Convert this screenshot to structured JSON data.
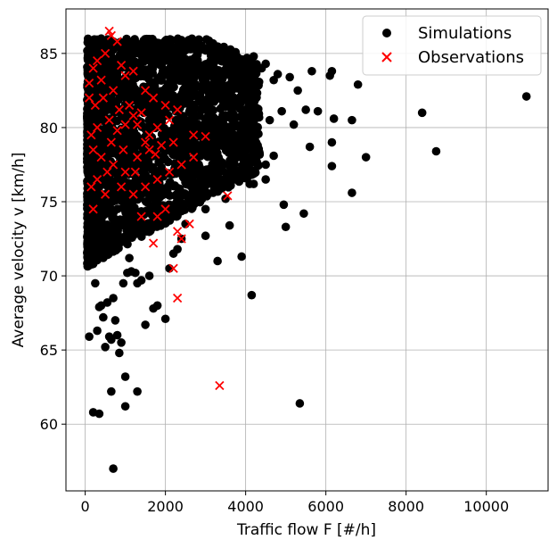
{
  "chart_data": {
    "type": "scatter",
    "xlabel": "Traffic flow F [#/h]",
    "ylabel": "Average velocity v [km/h]",
    "xlim": [
      -480,
      11540
    ],
    "ylim": [
      55.5,
      88.0
    ],
    "xticks": [
      0,
      2000,
      4000,
      6000,
      8000,
      10000
    ],
    "yticks": [
      60,
      65,
      70,
      75,
      80,
      85
    ],
    "grid": true,
    "legend_position": "top-right",
    "series": [
      {
        "name": "Simulations",
        "marker": "circle",
        "color": "#000000",
        "points": [
          [
            11000,
            82.1
          ],
          [
            8750,
            78.4
          ],
          [
            8400,
            81.0
          ],
          [
            7000,
            78.0
          ],
          [
            6800,
            82.9
          ],
          [
            6650,
            80.5
          ],
          [
            6650,
            75.6
          ],
          [
            6150,
            77.4
          ],
          [
            6150,
            79.0
          ],
          [
            6100,
            83.5
          ],
          [
            6150,
            83.8
          ],
          [
            5650,
            83.8
          ],
          [
            5600,
            78.7
          ],
          [
            5450,
            74.2
          ],
          [
            5350,
            61.4
          ],
          [
            5300,
            82.5
          ],
          [
            5000,
            73.3
          ],
          [
            4950,
            74.8
          ],
          [
            4700,
            83.2
          ],
          [
            4500,
            77.5
          ],
          [
            4300,
            82.8
          ],
          [
            4150,
            68.7
          ],
          [
            4100,
            76.2
          ],
          [
            3900,
            71.3
          ],
          [
            3800,
            78.0
          ],
          [
            3600,
            73.4
          ],
          [
            3500,
            75.2
          ],
          [
            3300,
            71.0
          ],
          [
            3000,
            72.7
          ],
          [
            2900,
            76.0
          ],
          [
            2700,
            74.8
          ],
          [
            2500,
            73.5
          ],
          [
            2400,
            72.5
          ],
          [
            2300,
            71.8
          ],
          [
            2100,
            70.5
          ],
          [
            2000,
            67.1
          ],
          [
            1800,
            68.0
          ],
          [
            1700,
            67.8
          ],
          [
            1600,
            70.0
          ],
          [
            1500,
            66.7
          ],
          [
            1400,
            69.7
          ],
          [
            1300,
            69.5
          ],
          [
            1250,
            70.2
          ],
          [
            1300,
            62.2
          ],
          [
            1150,
            70.3
          ],
          [
            1050,
            70.2
          ],
          [
            950,
            69.5
          ],
          [
            900,
            65.5
          ],
          [
            850,
            64.8
          ],
          [
            800,
            66.0
          ],
          [
            750,
            67.0
          ],
          [
            700,
            68.5
          ],
          [
            650,
            65.7
          ],
          [
            600,
            65.9
          ],
          [
            550,
            68.2
          ],
          [
            500,
            65.2
          ],
          [
            450,
            67.2
          ],
          [
            400,
            68.0
          ],
          [
            350,
            67.9
          ],
          [
            300,
            66.3
          ],
          [
            250,
            69.5
          ],
          [
            200,
            70.8
          ],
          [
            100,
            65.9
          ],
          [
            200,
            60.8
          ],
          [
            350,
            60.7
          ],
          [
            650,
            62.2
          ],
          [
            1000,
            61.2
          ],
          [
            1000,
            63.2
          ],
          [
            700,
            57.0
          ],
          [
            150,
            71.0
          ],
          [
            2200,
            71.5
          ],
          [
            1100,
            71.2
          ],
          [
            2400,
            85.9
          ],
          [
            2000,
            85.3
          ],
          [
            1150,
            85.7
          ],
          [
            400,
            86.0
          ],
          [
            700,
            85.8
          ],
          [
            3000,
            85.2
          ],
          [
            3500,
            84.8
          ],
          [
            3900,
            84.6
          ],
          [
            4200,
            84.8
          ],
          [
            4500,
            84.3
          ],
          [
            4400,
            84.0
          ],
          [
            4800,
            83.6
          ],
          [
            5100,
            83.4
          ],
          [
            3700,
            84.0
          ],
          [
            2800,
            84.9
          ],
          [
            4600,
            80.5
          ],
          [
            4300,
            78.8
          ],
          [
            4900,
            81.1
          ],
          [
            5200,
            80.2
          ],
          [
            5500,
            81.2
          ],
          [
            5800,
            81.1
          ],
          [
            6200,
            80.6
          ],
          [
            4700,
            78.1
          ],
          [
            4500,
            76.5
          ],
          [
            4200,
            76.2
          ],
          [
            3700,
            77.0
          ],
          [
            3200,
            77.5
          ],
          [
            3000,
            74.5
          ]
        ]
      },
      {
        "name": "Observations",
        "marker": "x",
        "color": "#ff0000",
        "points": [
          [
            600,
            86.5
          ],
          [
            650,
            86.2
          ],
          [
            800,
            85.8
          ],
          [
            500,
            85.0
          ],
          [
            300,
            84.5
          ],
          [
            200,
            84.0
          ],
          [
            900,
            84.2
          ],
          [
            1000,
            83.5
          ],
          [
            1200,
            83.8
          ],
          [
            400,
            83.2
          ],
          [
            100,
            83.0
          ],
          [
            700,
            82.5
          ],
          [
            1500,
            82.5
          ],
          [
            1700,
            82.0
          ],
          [
            2000,
            81.5
          ],
          [
            2300,
            81.2
          ],
          [
            2100,
            80.5
          ],
          [
            1800,
            80.0
          ],
          [
            1600,
            79.5
          ],
          [
            1400,
            81.0
          ],
          [
            1200,
            80.8
          ],
          [
            1000,
            80.2
          ],
          [
            800,
            79.8
          ],
          [
            600,
            80.5
          ],
          [
            300,
            80.0
          ],
          [
            150,
            79.5
          ],
          [
            200,
            78.5
          ],
          [
            400,
            78.0
          ],
          [
            700,
            77.5
          ],
          [
            1000,
            77.0
          ],
          [
            1300,
            78.0
          ],
          [
            1600,
            78.5
          ],
          [
            1900,
            78.8
          ],
          [
            2200,
            79.0
          ],
          [
            2700,
            79.5
          ],
          [
            3000,
            79.4
          ],
          [
            2700,
            78.0
          ],
          [
            2400,
            77.5
          ],
          [
            2100,
            77.0
          ],
          [
            1800,
            76.5
          ],
          [
            1500,
            76.0
          ],
          [
            1200,
            75.5
          ],
          [
            900,
            76.0
          ],
          [
            500,
            75.5
          ],
          [
            300,
            76.5
          ],
          [
            200,
            74.5
          ],
          [
            1400,
            74.0
          ],
          [
            1800,
            74.0
          ],
          [
            2000,
            74.5
          ],
          [
            2600,
            73.5
          ],
          [
            2300,
            73.0
          ],
          [
            2400,
            72.5
          ],
          [
            1700,
            72.2
          ],
          [
            2200,
            70.5
          ],
          [
            2300,
            68.5
          ],
          [
            3350,
            62.6
          ],
          [
            3550,
            75.4
          ],
          [
            100,
            82.0
          ],
          [
            250,
            81.5
          ],
          [
            450,
            82.0
          ],
          [
            850,
            81.2
          ],
          [
            1100,
            81.5
          ],
          [
            1300,
            80.2
          ],
          [
            1500,
            79.0
          ],
          [
            1750,
            78.2
          ],
          [
            550,
            77.0
          ],
          [
            950,
            78.5
          ],
          [
            1250,
            77.0
          ],
          [
            150,
            76.0
          ],
          [
            650,
            79.0
          ]
        ]
      }
    ]
  }
}
